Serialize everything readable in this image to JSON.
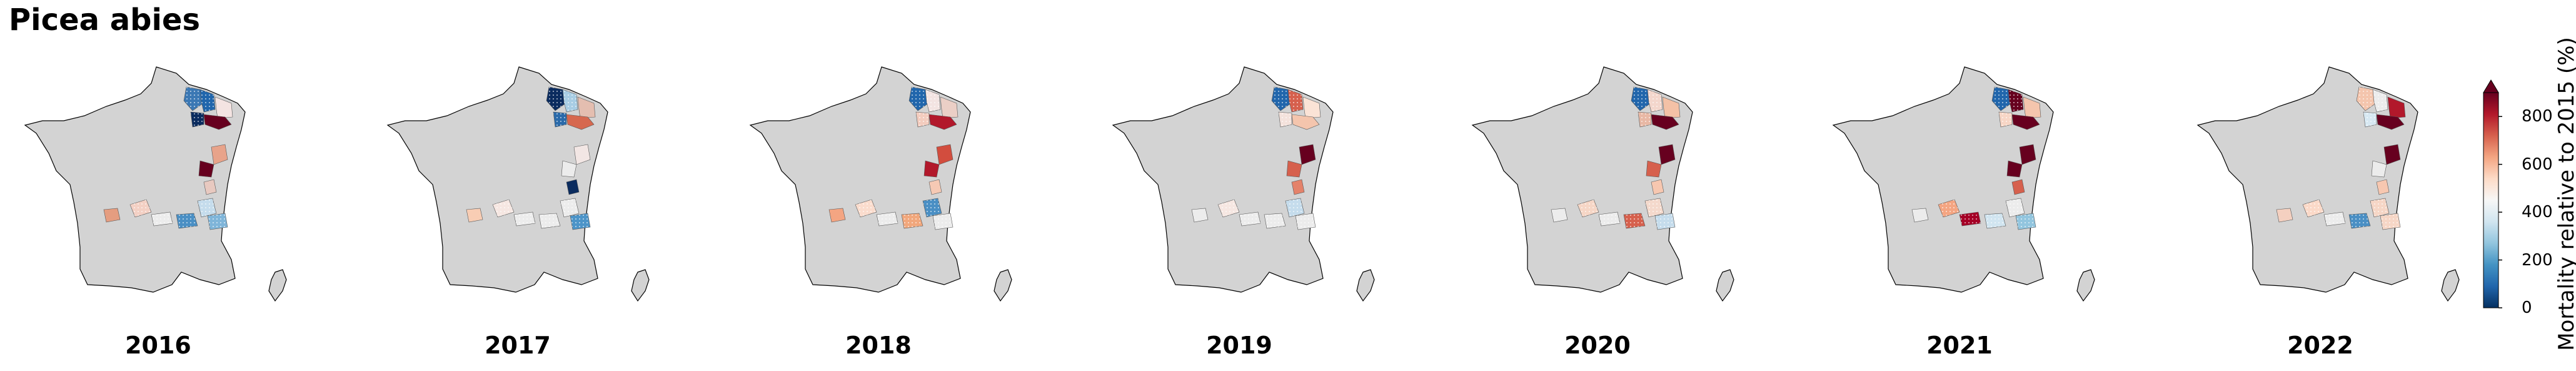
{
  "title": "Picea abies",
  "panels": [
    {
      "year": "2016",
      "regions": {
        "r1": "#3b78b4",
        "r2": "#2166ac",
        "r3": "#f4e4e2",
        "r4": "#67001f",
        "r5": "#0b2c5f",
        "r6": "#e8a38a",
        "r7": "#67001f",
        "r8": "#e8c9c0",
        "r9": "#f3d0c4",
        "r10": "#e59d80",
        "r11": "#ececec",
        "r12": "#4a8fc4",
        "r13": "#c5dcec",
        "r14": "#7fb5d9"
      }
    },
    {
      "year": "2017",
      "regions": {
        "r1": "#0b2c5f",
        "r2": "#a8cde4",
        "r3": "#e4beb0",
        "r4": "#d6684f",
        "r5": "#2a6aaa",
        "r6": "#f2e6e4",
        "r7": "#ececec",
        "r8": "#0b2c5f",
        "r9": "#f6e7e2",
        "r10": "#f8cdb4",
        "r11": "#ececec",
        "r12": "#ececec",
        "r13": "#ececec",
        "r14": "#4c94c8"
      }
    },
    {
      "year": "2018",
      "regions": {
        "r1": "#2166ac",
        "r2": "#f3e4e2",
        "r3": "#ebcfc6",
        "r4": "#b2182b",
        "r5": "#f3ccbe",
        "r6": "#d24d3e",
        "r7": "#b2182b",
        "r8": "#f6c9b4",
        "r9": "#fadccd",
        "r10": "#f4a582",
        "r11": "#ececec",
        "r12": "#f1a77c",
        "r13": "#4a8fc4",
        "r14": "#ececec"
      }
    },
    {
      "year": "2019",
      "regions": {
        "r1": "#2166ac",
        "r2": "#d6604d",
        "r3": "#fbe3d6",
        "r4": "#f4c5ad",
        "r5": "#f4e2dc",
        "r6": "#67001f",
        "r7": "#d6604d",
        "r8": "#e4826a",
        "r9": "#f6e7e2",
        "r10": "#ececec",
        "r11": "#ececec",
        "r12": "#ececec",
        "r13": "#c5dcec",
        "r14": "#ececec"
      }
    },
    {
      "year": "2020",
      "regions": {
        "r1": "#2166ac",
        "r2": "#f3d6cc",
        "r3": "#f4c1a6",
        "r4": "#67001f",
        "r5": "#e8b8a5",
        "r6": "#67001f",
        "r7": "#d6604d",
        "r8": "#f7c7b0",
        "r9": "#f6d6c6",
        "r10": "#ececec",
        "r11": "#ececec",
        "r12": "#d6604d",
        "r13": "#f4d9cc",
        "r14": "#c5dcec"
      }
    },
    {
      "year": "2021",
      "regions": {
        "r1": "#2166ac",
        "r2": "#67001f",
        "r3": "#f4c5ad",
        "r4": "#67001f",
        "r5": "#f7d6c6",
        "r6": "#67001f",
        "r7": "#67001f",
        "r8": "#d6604d",
        "r9": "#f4a582",
        "r10": "#ececec",
        "r11": "#a50026",
        "r12": "#d1e5f0",
        "r13": "#ececec",
        "r14": "#92c5de"
      }
    },
    {
      "year": "2022",
      "regions": {
        "r1": "#f4c5ad",
        "r2": "#ececec",
        "r3": "#b2182b",
        "r4": "#67001f",
        "r5": "#d7e8f2",
        "r6": "#67001f",
        "r7": "#ececec",
        "r8": "#f7c7b0",
        "r9": "#fbd9c8",
        "r10": "#f4d0c0",
        "r11": "#ececec",
        "r12": "#4a8fc4",
        "r13": "#f6d6c6",
        "r14": "#f6d6c6"
      }
    }
  ],
  "colorbar": {
    "label": "Mortality relative to 2015 (%)",
    "ticks": [
      "0",
      "200",
      "400",
      "600",
      "800"
    ],
    "tick_values": [
      0,
      200,
      400,
      600,
      800
    ],
    "min": 0,
    "max": 900,
    "stops": [
      "#053061",
      "#2166ac",
      "#4393c3",
      "#92c5de",
      "#d1e5f0",
      "#f7f7f7",
      "#fddbc7",
      "#f4a582",
      "#d6604d",
      "#b2182b",
      "#67001f"
    ]
  },
  "colors": {
    "land": "#d3d3d3",
    "border": "#000000"
  }
}
